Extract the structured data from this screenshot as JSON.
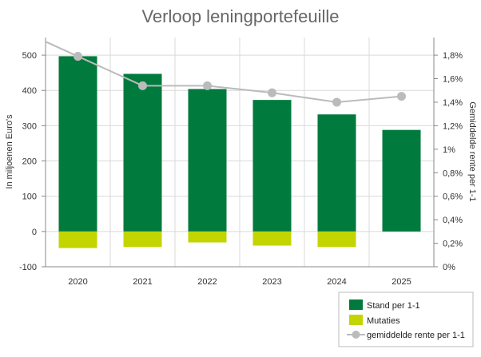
{
  "chart_data": {
    "type": "bar",
    "title": "Verloop leningportefeuille",
    "categories": [
      "2020",
      "2021",
      "2022",
      "2023",
      "2024",
      "2025"
    ],
    "ylabel": "In miljoenen Euro's",
    "y2label": "Gemiddelde rente per 1-1",
    "ylim": [
      -100,
      550
    ],
    "yticks": [
      "-100",
      "0",
      "100",
      "200",
      "300",
      "400",
      "500"
    ],
    "y2lim": [
      0,
      1.95
    ],
    "y2ticks": [
      "0%",
      "0,2%",
      "0,4%",
      "0,6%",
      "0,8%",
      "1%",
      "1,2%",
      "1,4%",
      "1,6%",
      "1,8%"
    ],
    "grid": true,
    "legend_position": "bottom-right",
    "series": [
      {
        "name": "Stand per 1-1",
        "type": "bar",
        "axis": "left",
        "color": "#007a3d",
        "values": [
          497,
          447,
          404,
          373,
          332,
          288
        ]
      },
      {
        "name": "Mutaties",
        "type": "bar",
        "axis": "left",
        "color": "#c2d500",
        "values": [
          -47,
          -44,
          -31,
          -40,
          -44,
          0
        ]
      },
      {
        "name": "gemiddelde rente per 1-1",
        "type": "line",
        "axis": "right",
        "color": "#bbbbbb",
        "values": [
          1.79,
          1.54,
          1.54,
          1.48,
          1.4,
          1.45
        ]
      }
    ]
  }
}
